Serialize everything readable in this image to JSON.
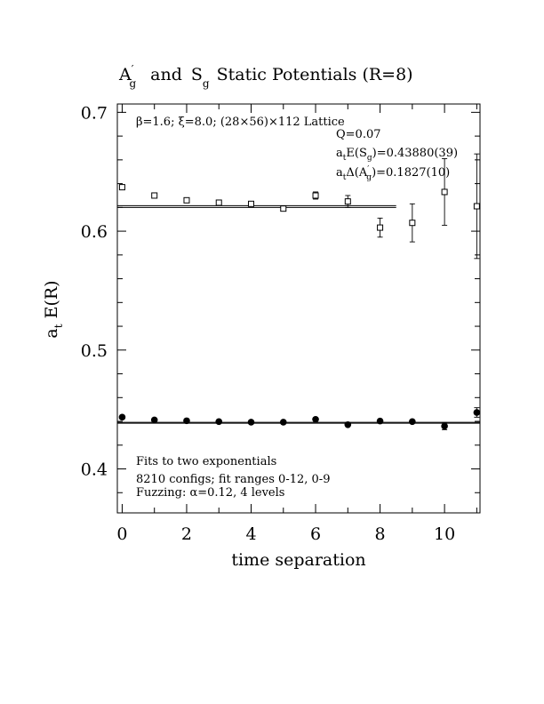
{
  "chart_data": {
    "type": "scatter",
    "title": {
      "a_main": "A",
      "a_prime": "′",
      "a_sub": "g",
      "and": "and",
      "s_main": "S",
      "s_sub": "g",
      "rest": "Static Potentials (R=8)"
    },
    "xlabel": "time separation",
    "ylabel": {
      "a": "a",
      "sub": "t",
      "rest": "E(R)"
    },
    "xlim": [
      -0.15,
      11.1
    ],
    "ylim": [
      0.363,
      0.707
    ],
    "x_ticks": [
      0,
      2,
      4,
      6,
      8,
      10
    ],
    "x_tick_labels": [
      "0",
      "2",
      "4",
      "6",
      "8",
      "10"
    ],
    "y_ticks": [
      0.4,
      0.5,
      0.6,
      0.7
    ],
    "y_tick_labels": [
      "0.4",
      "0.5",
      "0.6",
      "0.7"
    ],
    "annotations": {
      "lattice": "β=1.6; ξ=8.0; (28×56)×112 Lattice",
      "q": "Q=0.07",
      "es_a": "a",
      "es_t": "t",
      "es_mid": "E(S",
      "es_g": "g",
      "es_end": ")=0.43880(39)",
      "da_a": "a",
      "da_t": "t",
      "da_mid": "Δ(A",
      "da_g": "g",
      "da_prime": "′",
      "da_end": ")=0.1827(10)",
      "fits_line1": "Fits to two exponentials",
      "fits_line2": "8210 configs; fit ranges 0-12, 0-9",
      "fits_line3": "Fuzzing: α=0.12, 4 levels"
    },
    "series": [
      {
        "marker": "open-square",
        "points": [
          {
            "x": 0,
            "y": 0.637,
            "err": 0.001
          },
          {
            "x": 1,
            "y": 0.63,
            "err": 0.0015
          },
          {
            "x": 2,
            "y": 0.626,
            "err": 0.0015
          },
          {
            "x": 3,
            "y": 0.624,
            "err": 0.0015
          },
          {
            "x": 4,
            "y": 0.623,
            "err": 0.002
          },
          {
            "x": 5,
            "y": 0.619,
            "err": 0.002
          },
          {
            "x": 6,
            "y": 0.63,
            "err": 0.003
          },
          {
            "x": 7,
            "y": 0.625,
            "err": 0.005
          },
          {
            "x": 8,
            "y": 0.603,
            "err": 0.008
          },
          {
            "x": 9,
            "y": 0.607,
            "err": 0.016
          },
          {
            "x": 10,
            "y": 0.633,
            "err": 0.028
          },
          {
            "x": 11,
            "y": 0.621,
            "err": 0.044
          }
        ]
      },
      {
        "marker": "filled-circle",
        "points": [
          {
            "x": 0,
            "y": 0.4435,
            "err": 0.001
          },
          {
            "x": 1,
            "y": 0.4412,
            "err": 0.001
          },
          {
            "x": 2,
            "y": 0.4405,
            "err": 0.001
          },
          {
            "x": 3,
            "y": 0.4398,
            "err": 0.001
          },
          {
            "x": 4,
            "y": 0.4393,
            "err": 0.001
          },
          {
            "x": 5,
            "y": 0.4393,
            "err": 0.001
          },
          {
            "x": 6,
            "y": 0.4417,
            "err": 0.0015
          },
          {
            "x": 7,
            "y": 0.4372,
            "err": 0.002
          },
          {
            "x": 8,
            "y": 0.4403,
            "err": 0.002
          },
          {
            "x": 9,
            "y": 0.4398,
            "err": 0.002
          },
          {
            "x": 10,
            "y": 0.436,
            "err": 0.003
          },
          {
            "x": 11,
            "y": 0.4475,
            "err": 0.004
          }
        ]
      }
    ],
    "fit_lines": [
      {
        "x_range": [
          -0.15,
          8.5
        ],
        "y": 0.6215
      },
      {
        "x_range": [
          -0.15,
          8.5
        ],
        "y": 0.62
      },
      {
        "x_range": [
          -0.15,
          11.1
        ],
        "y": 0.4392
      },
      {
        "x_range": [
          -0.15,
          11.1
        ],
        "y": 0.4384
      }
    ]
  }
}
